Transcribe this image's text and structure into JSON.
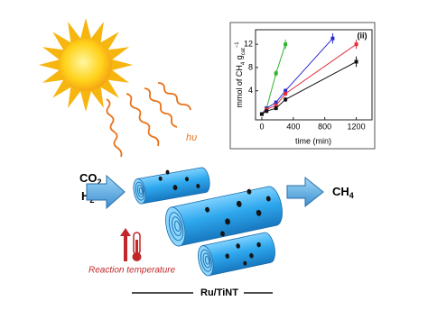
{
  "labels": {
    "light": "hυ",
    "reactant_1": {
      "base": "CO",
      "sub": "2"
    },
    "reactant_2": {
      "base": "H",
      "sub": "2"
    },
    "product": {
      "base": "CH",
      "sub": "4"
    },
    "temperature": "Reaction temperature",
    "catalyst": "Ru/TiNT"
  },
  "chart_data": {
    "type": "line",
    "panel_label": "(ii)",
    "x_label": "time (min)",
    "y_label": [
      "mmol of CH",
      "4",
      " g",
      "cat",
      "−1"
    ],
    "xlim": [
      -80,
      1400
    ],
    "xticks": [
      0,
      400,
      800,
      1200
    ],
    "ylim": [
      -1,
      14.5
    ],
    "yticks": [
      4,
      8,
      12
    ],
    "series": [
      {
        "color": "#2fb52f",
        "x": [
          0,
          60,
          180,
          300
        ],
        "values": [
          0,
          1,
          7,
          12
        ],
        "errors": [
          0,
          0.2,
          0.5,
          0.8
        ]
      },
      {
        "color": "#2a2ad0",
        "x": [
          0,
          60,
          180,
          300,
          900
        ],
        "values": [
          0,
          1,
          2,
          4,
          13
        ],
        "errors": [
          0,
          0.2,
          0.3,
          0.4,
          0.9
        ]
      },
      {
        "color": "#e0303a",
        "x": [
          0,
          60,
          180,
          300,
          1200
        ],
        "values": [
          0,
          0.8,
          1.5,
          3.5,
          12
        ],
        "errors": [
          0,
          0.2,
          0.3,
          0.4,
          0.8
        ]
      },
      {
        "color": "#111111",
        "x": [
          0,
          60,
          180,
          300,
          1200
        ],
        "values": [
          0,
          0.5,
          1,
          2.5,
          9
        ],
        "errors": [
          0,
          0.2,
          0.3,
          0.4,
          0.9
        ]
      }
    ]
  }
}
